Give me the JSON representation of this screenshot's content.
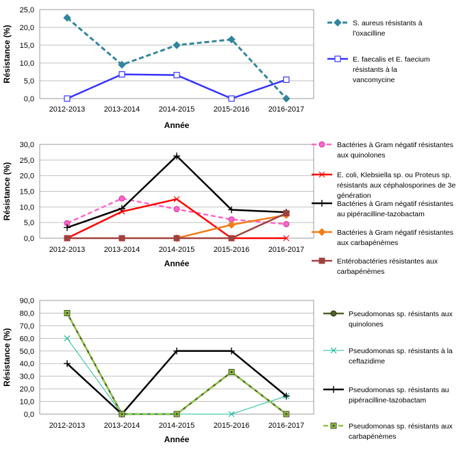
{
  "chart_data": [
    {
      "type": "line",
      "categories": [
        "2012-2013",
        "2013-2014",
        "2014-2015",
        "2015-2016",
        "2016-2017"
      ],
      "xlabel": "Année",
      "ylabel": "Résistance (%)",
      "ylim": [
        0,
        25
      ],
      "ystep": 5,
      "grid": "horizontal",
      "legend": "right",
      "series": [
        {
          "name_lines": [
            "S. aureus résistants à",
            "l'oxacilline"
          ],
          "values": [
            22.7,
            9.5,
            15.0,
            16.6,
            0.0
          ],
          "color": "#31859C",
          "dash": "dashed",
          "marker": "diamond",
          "width": 3
        },
        {
          "name_lines": [
            "E. faecalis et E. faecium",
            "résistants à la",
            "vancomycine"
          ],
          "values": [
            0.0,
            6.8,
            6.6,
            0.0,
            5.3
          ],
          "color": "#3333FF",
          "dash": "solid",
          "marker": "square-open",
          "width": 2.5
        }
      ]
    },
    {
      "type": "line",
      "categories": [
        "2012-2013",
        "2013-2014",
        "2014-2015",
        "2015-2016",
        "2016-2017"
      ],
      "xlabel": "Année",
      "ylabel": "Résistance (%)",
      "ylim": [
        0,
        30
      ],
      "ystep": 5,
      "grid": "horizontal",
      "legend": "right",
      "series": [
        {
          "name_lines": [
            "Bactéries à Gram négatif résistantes",
            "aux quinolones"
          ],
          "values": [
            4.8,
            12.7,
            9.3,
            6.0,
            4.5
          ],
          "color": "#FF66CC",
          "dash": "dashed",
          "marker": "circle",
          "width": 2.5
        },
        {
          "name_lines": [
            "E. coli, Klebsiella sp. ou Proteus sp.",
            "résistants aux céphalosporines de 3e",
            "génération"
          ],
          "values": [
            0.0,
            8.5,
            12.5,
            0.0,
            0.0
          ],
          "color": "#FF0000",
          "dash": "solid",
          "marker": "x",
          "width": 2.5
        },
        {
          "name_lines": [
            "Bactéries à Gram négatif résistantes",
            "au pipéracilline-tazobactam"
          ],
          "values": [
            3.4,
            9.5,
            26.3,
            9.1,
            8.3
          ],
          "color": "#000000",
          "dash": "solid",
          "marker": "plus",
          "width": 2.5
        },
        {
          "name_lines": [
            "Bactéries à Gram négatif résistantes",
            "aux carbapénèmes"
          ],
          "values": [
            null,
            null,
            0.0,
            4.3,
            7.4
          ],
          "color": "#F07D1A",
          "dash": "solid",
          "marker": "diamond",
          "width": 2.5
        },
        {
          "name_lines": [
            "Entérobactéries résistantes aux",
            "carbapénèmes"
          ],
          "values": [
            0.0,
            0.0,
            0.0,
            0.0,
            8.0
          ],
          "color": "#A0413C",
          "dash": "solid",
          "marker": "square",
          "width": 2.5
        }
      ]
    },
    {
      "type": "line",
      "categories": [
        "2012-2013",
        "2013-2014",
        "2014-2015",
        "2015-2016",
        "2016-2017"
      ],
      "xlabel": "Année",
      "ylabel": "Résistance (%)",
      "ylim": [
        0,
        90
      ],
      "ystep": 10,
      "grid": "horizontal",
      "legend": "right",
      "series": [
        {
          "name_lines": [
            "Pseudomonas sp. résistants aux",
            "quinolones"
          ],
          "values": [
            80.0,
            0.0,
            0.0,
            33.3,
            0.0
          ],
          "color": "#4F6228",
          "dash": "solid",
          "marker": "circle",
          "width": 2.5
        },
        {
          "name_lines": [
            "Pseudomonas sp. résistants à la",
            "ceftazidime"
          ],
          "values": [
            60.0,
            0.0,
            0.0,
            0.0,
            14.3
          ],
          "color": "#1ABC9C",
          "dash": "solid",
          "marker": "x",
          "width": 1
        },
        {
          "name_lines": [
            "Pseudomonas sp. résistants au",
            "pipéracilline-tazobactam"
          ],
          "values": [
            40.0,
            0.0,
            50.0,
            50.0,
            14.3
          ],
          "color": "#000000",
          "dash": "solid",
          "marker": "plus",
          "width": 2.5
        },
        {
          "name_lines": [
            "Pseudomonas sp. résistants aux",
            "carbapénèmes"
          ],
          "values": [
            80.0,
            0.0,
            0.0,
            33.3,
            0.0
          ],
          "color": "#8DC63F",
          "dash": "dashed",
          "marker": "square-dot",
          "width": 2.5
        }
      ]
    }
  ]
}
